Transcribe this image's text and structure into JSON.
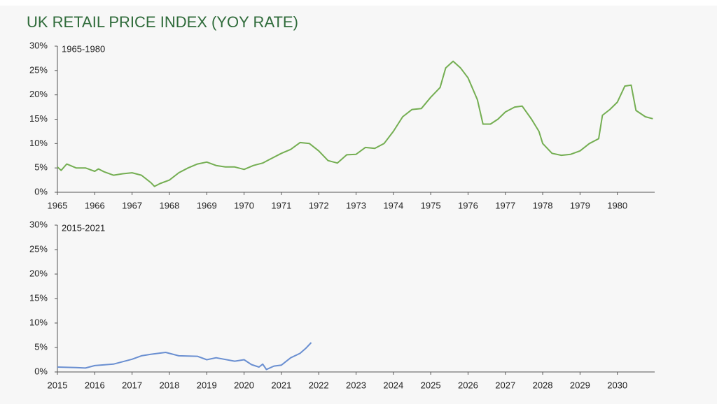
{
  "title": "UK RETAIL PRICE INDEX (YOY RATE)",
  "chart_data": [
    {
      "type": "line",
      "label": "1965-1980",
      "xlim": [
        1965,
        1981
      ],
      "xticks": [
        1965,
        1966,
        1967,
        1968,
        1969,
        1970,
        1971,
        1972,
        1973,
        1974,
        1975,
        1976,
        1977,
        1978,
        1979,
        1980
      ],
      "ylim": [
        0,
        30
      ],
      "yticks": [
        {
          "value": 0,
          "label": "0%"
        },
        {
          "value": 5,
          "label": "5%"
        },
        {
          "value": 10,
          "label": "10%"
        },
        {
          "value": 15,
          "label": "15%"
        },
        {
          "value": 20,
          "label": "20%"
        },
        {
          "value": 25,
          "label": "25%"
        },
        {
          "value": 30,
          "label": "30%"
        }
      ],
      "series": [
        {
          "color": "#74ae52",
          "x": [
            1965,
            1965.1,
            1965.25,
            1965.5,
            1965.75,
            1966,
            1966.1,
            1966.25,
            1966.5,
            1966.75,
            1967,
            1967.25,
            1967.5,
            1967.6,
            1967.75,
            1968,
            1968.25,
            1968.5,
            1968.75,
            1969,
            1969.25,
            1969.5,
            1969.75,
            1970,
            1970.25,
            1970.5,
            1970.75,
            1971,
            1971.25,
            1971.5,
            1971.75,
            1972,
            1972.25,
            1972.5,
            1972.75,
            1973,
            1973.25,
            1973.5,
            1973.75,
            1974,
            1974.25,
            1974.5,
            1974.75,
            1975,
            1975.25,
            1975.4,
            1975.6,
            1975.8,
            1976,
            1976.25,
            1976.4,
            1976.6,
            1976.8,
            1977,
            1977.25,
            1977.45,
            1977.7,
            1977.9,
            1978,
            1978.25,
            1978.5,
            1978.75,
            1979,
            1979.25,
            1979.5,
            1979.6,
            1979.8,
            1980,
            1980.2,
            1980.37,
            1980.5,
            1980.75,
            1980.95
          ],
          "values": [
            5.2,
            4.5,
            5.8,
            5.0,
            5.0,
            4.3,
            4.8,
            4.2,
            3.5,
            3.8,
            4.0,
            3.5,
            2.0,
            1.2,
            1.8,
            2.5,
            4.0,
            5.0,
            5.8,
            6.2,
            5.5,
            5.2,
            5.2,
            4.7,
            5.5,
            6.0,
            7.0,
            8.0,
            8.8,
            10.2,
            10.0,
            8.5,
            6.5,
            6.0,
            7.7,
            7.8,
            9.2,
            9.0,
            10.0,
            12.5,
            15.5,
            17.0,
            17.2,
            19.5,
            21.5,
            25.5,
            26.9,
            25.5,
            23.5,
            19.0,
            14.0,
            14.0,
            15.0,
            16.5,
            17.5,
            17.7,
            15.0,
            12.5,
            10.0,
            8.0,
            7.6,
            7.8,
            8.5,
            10.0,
            11.0,
            15.8,
            17.0,
            18.5,
            21.8,
            22.0,
            16.8,
            15.5,
            15.1
          ]
        }
      ]
    },
    {
      "type": "line",
      "label": "2015-2021",
      "xlim": [
        2015,
        2031
      ],
      "xticks": [
        2015,
        2016,
        2017,
        2018,
        2019,
        2020,
        2021,
        2022,
        2023,
        2024,
        2025,
        2026,
        2027,
        2028,
        2029,
        2030
      ],
      "ylim": [
        0,
        30
      ],
      "yticks": [
        {
          "value": 0,
          "label": "0%"
        },
        {
          "value": 5,
          "label": "5%"
        },
        {
          "value": 10,
          "label": "10%"
        },
        {
          "value": 15,
          "label": "15%"
        },
        {
          "value": 20,
          "label": "20%"
        },
        {
          "value": 25,
          "label": "25%"
        },
        {
          "value": 30,
          "label": "30%"
        }
      ],
      "series": [
        {
          "color": "#6a8fd1",
          "x": [
            2015,
            2015.5,
            2015.75,
            2016,
            2016.5,
            2017,
            2017.25,
            2017.5,
            2017.9,
            2018.25,
            2018.75,
            2019,
            2019.25,
            2019.75,
            2020,
            2020.2,
            2020.4,
            2020.5,
            2020.6,
            2020.8,
            2021,
            2021.25,
            2021.5,
            2021.65,
            2021.8
          ],
          "values": [
            1.0,
            0.9,
            0.8,
            1.3,
            1.6,
            2.6,
            3.3,
            3.6,
            4.0,
            3.3,
            3.2,
            2.5,
            2.9,
            2.2,
            2.5,
            1.5,
            1.0,
            1.6,
            0.5,
            1.2,
            1.4,
            2.9,
            3.8,
            4.8,
            6.0
          ]
        }
      ]
    }
  ]
}
